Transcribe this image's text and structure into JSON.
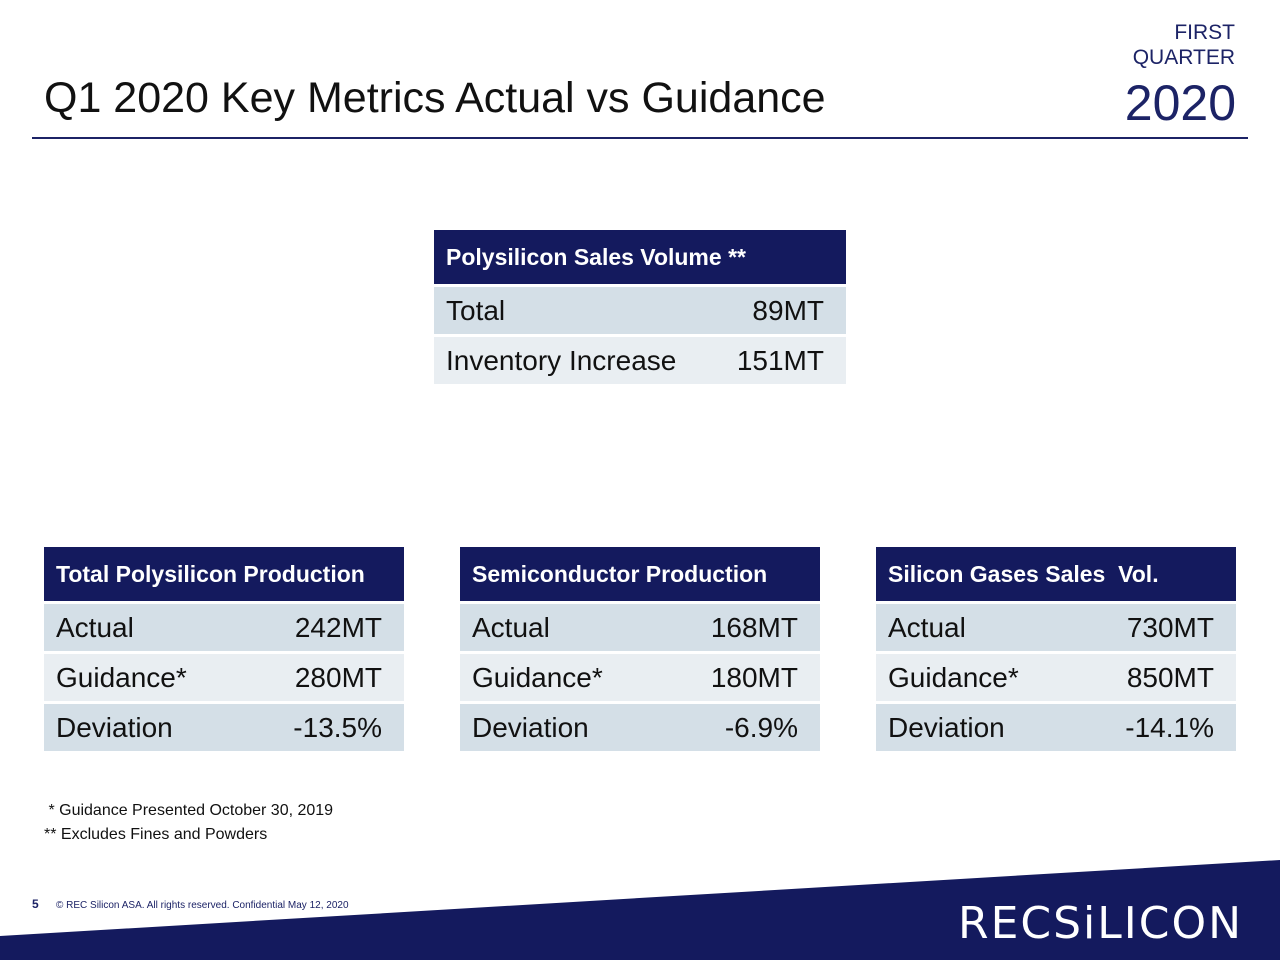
{
  "header": {
    "title": "Q1 2020 Key Metrics Actual vs Guidance",
    "quarter_line1": "FIRST",
    "quarter_line2": "QUARTER",
    "year": "2020"
  },
  "sales_volume": {
    "heading": "Polysilicon Sales Volume **",
    "rows": [
      {
        "label": "Total",
        "value": "89MT"
      },
      {
        "label": "Inventory Increase",
        "value": "151MT"
      }
    ]
  },
  "total_production": {
    "heading": "Total Polysilicon Production",
    "rows": [
      {
        "label": "Actual",
        "value": "242MT"
      },
      {
        "label": "Guidance*",
        "value": "280MT"
      },
      {
        "label": "Deviation",
        "value": "-13.5%"
      }
    ]
  },
  "semi_production": {
    "heading": "Semiconductor Production",
    "rows": [
      {
        "label": "Actual",
        "value": "168MT"
      },
      {
        "label": "Guidance*",
        "value": "180MT"
      },
      {
        "label": "Deviation",
        "value": "-6.9%"
      }
    ]
  },
  "gases_sales": {
    "heading": "Silicon Gases Sales  Vol.",
    "rows": [
      {
        "label": "Actual",
        "value": "730MT"
      },
      {
        "label": "Guidance*",
        "value": "850MT"
      },
      {
        "label": "Deviation",
        "value": "-14.1%"
      }
    ]
  },
  "footnotes": {
    "guidance": " * Guidance Presented October 30, 2019",
    "excludes": "** Excludes Fines and Powders"
  },
  "footer": {
    "page_number": "5",
    "copyright": "©  REC Silicon ASA. All rights reserved. Confidential May 12, 2020",
    "logo_text": "RECSiLICON"
  },
  "colors": {
    "navy": "#141a5e",
    "row_light": "#d4dfe7",
    "row_lighter": "#e9eef2"
  }
}
